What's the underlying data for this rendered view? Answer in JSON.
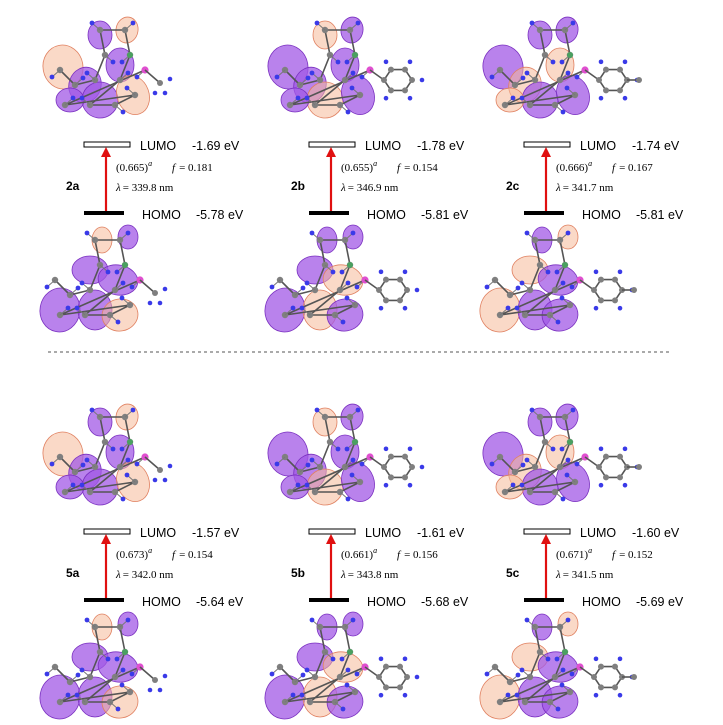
{
  "colors": {
    "lobe_purple": "#a258e6",
    "lobe_orange": "#f6b999",
    "arrow_red": "#e01010",
    "atom_carbon": "#7f7f7f",
    "atom_hydrogen": "#3a3ae8",
    "atom_phosphorus": "#e04fd0",
    "atom_nitrogen": "#4aa060",
    "homo_bar": "#000000",
    "separator": "#555555"
  },
  "panels": [
    {
      "id": "2a",
      "label": "2a",
      "lumo_label": "LUMO",
      "lumo_value": "-1.69 eV",
      "homo_label": "HOMO",
      "homo_value": "-5.78 eV",
      "coef": "(0.665)",
      "coef_sup": "a",
      "f_prefix": "f",
      "f_value": "= 0.181",
      "lambda_prefix": "λ",
      "lambda_value": "=  339.8 nm",
      "substituent": "methyl",
      "lumo_energy_ev": -1.69,
      "homo_energy_ev": -5.78
    },
    {
      "id": "2b",
      "label": "2b",
      "lumo_label": "LUMO",
      "lumo_value": "-1.78 eV",
      "homo_label": "HOMO",
      "homo_value": "-5.81 eV",
      "coef": "(0.655)",
      "coef_sup": "a",
      "f_prefix": "f",
      "f_value": "= 0.154",
      "lambda_prefix": "λ",
      "lambda_value": "=  346.9 nm",
      "substituent": "phenyl",
      "lumo_energy_ev": -1.78,
      "homo_energy_ev": -5.81
    },
    {
      "id": "2c",
      "label": "2c",
      "lumo_label": "LUMO",
      "lumo_value": "-1.74 eV",
      "homo_label": "HOMO",
      "homo_value": "-5.81 eV",
      "coef": "(0.666)",
      "coef_sup": "a",
      "f_prefix": "f",
      "f_value": "= 0.167",
      "lambda_prefix": "λ",
      "lambda_value": "=  341.7 nm",
      "substituent": "tolyl",
      "lumo_energy_ev": -1.74,
      "homo_energy_ev": -5.81
    },
    {
      "id": "5a",
      "label": "5a",
      "lumo_label": "LUMO",
      "lumo_value": "-1.57 eV",
      "homo_label": "HOMO",
      "homo_value": "-5.64 eV",
      "coef": "(0.673)",
      "coef_sup": "a",
      "f_prefix": "f",
      "f_value": "= 0.154",
      "lambda_prefix": "λ",
      "lambda_value": "=  342.0 nm",
      "substituent": "methyl",
      "lumo_energy_ev": -1.57,
      "homo_energy_ev": -5.64
    },
    {
      "id": "5b",
      "label": "5b",
      "lumo_label": "LUMO",
      "lumo_value": "-1.61 eV",
      "homo_label": "HOMO",
      "homo_value": "-5.68 eV",
      "coef": "(0.661)",
      "coef_sup": "a",
      "f_prefix": "f",
      "f_value": "= 0.156",
      "lambda_prefix": "λ",
      "lambda_value": "=  343.8 nm",
      "substituent": "phenyl",
      "lumo_energy_ev": -1.61,
      "homo_energy_ev": -5.68
    },
    {
      "id": "5c",
      "label": "5c",
      "lumo_label": "LUMO",
      "lumo_value": "-1.60 eV",
      "homo_label": "HOMO",
      "homo_value": "-5.69 eV",
      "coef": "(0.671)",
      "coef_sup": "a",
      "f_prefix": "f",
      "f_value": "= 0.152",
      "lambda_prefix": "λ",
      "lambda_value": "=  341.5 nm",
      "substituent": "tolyl",
      "lumo_energy_ev": -1.6,
      "homo_energy_ev": -5.69
    }
  ]
}
